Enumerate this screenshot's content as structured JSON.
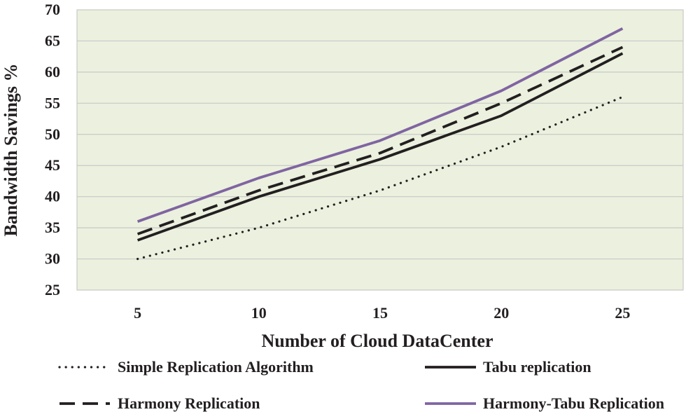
{
  "chart_data": {
    "type": "line",
    "title": "",
    "xlabel": "Number of Cloud DataCenter",
    "ylabel": "Bandwidth Savings %",
    "x": [
      5,
      10,
      15,
      20,
      25
    ],
    "categories": [
      "5",
      "10",
      "15",
      "20",
      "25"
    ],
    "ylim": [
      25,
      70
    ],
    "yticks": [
      "25",
      "30",
      "35",
      "40",
      "45",
      "50",
      "55",
      "60",
      "65",
      "70"
    ],
    "grid": true,
    "legend_position": "bottom",
    "plot_background": "#ebf1de",
    "series": [
      {
        "name": "Simple Replication Algorithm",
        "values": [
          30,
          35,
          41,
          48,
          56
        ],
        "color": "#231f20",
        "style": "dotted"
      },
      {
        "name": "Tabu replication",
        "values": [
          33,
          40,
          46,
          53,
          63
        ],
        "color": "#231f20",
        "style": "solid"
      },
      {
        "name": "Harmony Replication",
        "values": [
          34,
          41,
          47,
          55,
          64
        ],
        "color": "#231f20",
        "style": "dashed"
      },
      {
        "name": "Harmony-Tabu Replication",
        "values": [
          36,
          43,
          49,
          57,
          67
        ],
        "color": "#8064a2",
        "style": "solid"
      }
    ]
  }
}
